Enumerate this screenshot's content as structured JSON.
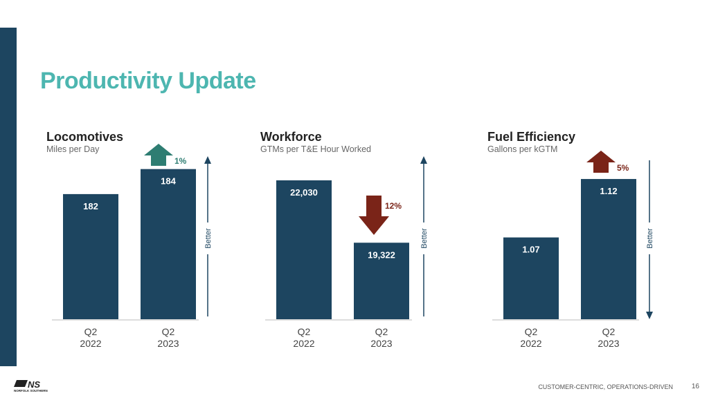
{
  "title": "Productivity Update",
  "footer": "CUSTOMER-CENTRIC, OPERATIONS-DRIVEN",
  "page_number": "16",
  "logo_text": "NS NORFOLK SOUTHERN",
  "colors": {
    "bar": "#1d4560",
    "up_good": "#2e7d72",
    "bad": "#7a2418",
    "title": "#4db6b0"
  },
  "chart_data": [
    {
      "type": "bar",
      "title": "Locomotives",
      "subtitle": "Miles per Day",
      "categories": [
        [
          "Q2",
          "2022"
        ],
        [
          "Q2",
          "2023"
        ]
      ],
      "values": [
        182,
        184
      ],
      "value_labels": [
        "182",
        "184"
      ],
      "ylim": [
        172,
        184.7
      ],
      "change": {
        "label": "1%",
        "direction": "up",
        "color": "#2e7d72"
      },
      "better": {
        "label": "Better",
        "direction": "up"
      }
    },
    {
      "type": "bar",
      "title": "Workforce",
      "subtitle": "GTMs per T&E Hour Worked",
      "categories": [
        [
          "Q2",
          "2022"
        ],
        [
          "Q2",
          "2023"
        ]
      ],
      "values": [
        22030,
        19322
      ],
      "value_labels": [
        "22,030",
        "19,322"
      ],
      "ylim": [
        16000,
        22900
      ],
      "change": {
        "label": "12%",
        "direction": "down",
        "color": "#7a2418"
      },
      "better": {
        "label": "Better",
        "direction": "up"
      }
    },
    {
      "type": "bar",
      "title": "Fuel Efficiency",
      "subtitle": "Gallons per kGTM",
      "categories": [
        [
          "Q2",
          "2022"
        ],
        [
          "Q2",
          "2023"
        ]
      ],
      "values": [
        1.07,
        1.12
      ],
      "value_labels": [
        "1.07",
        "1.12"
      ],
      "ylim": [
        1.0,
        1.136
      ],
      "change": {
        "label": "5%",
        "direction": "up",
        "color": "#7a2418"
      },
      "better": {
        "label": "Better",
        "direction": "down"
      }
    }
  ]
}
